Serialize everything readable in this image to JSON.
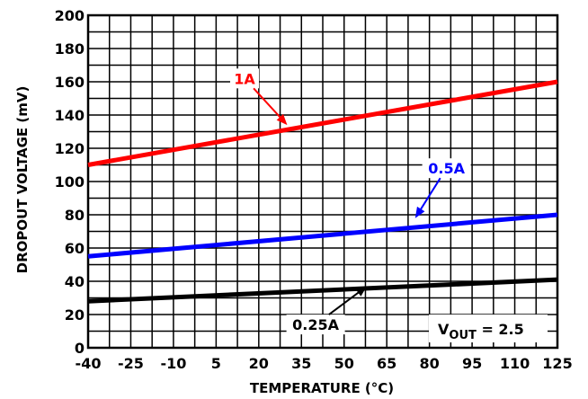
{
  "chart_data": {
    "type": "line",
    "xlabel": "TEMPERATURE (°C)",
    "ylabel": "DROPOUT VOLTAGE (mV)",
    "xlim": [
      -40,
      125
    ],
    "ylim": [
      0,
      200
    ],
    "x_ticks": [
      "-40",
      "-25",
      "-10",
      "5",
      "20",
      "35",
      "50",
      "65",
      "80",
      "95",
      "110",
      "125"
    ],
    "y_ticks": [
      "0",
      "20",
      "40",
      "60",
      "80",
      "100",
      "120",
      "140",
      "160",
      "180",
      "200"
    ],
    "grid": true,
    "series": [
      {
        "name": "1A",
        "color": "#ff0000",
        "x": [
          -40,
          125
        ],
        "y": [
          110,
          160
        ]
      },
      {
        "name": "0.5A",
        "color": "#0000ff",
        "x": [
          -40,
          125
        ],
        "y": [
          55,
          80
        ]
      },
      {
        "name": "0.25A",
        "color": "#000000",
        "x": [
          -40,
          125
        ],
        "y": [
          28,
          41
        ]
      }
    ],
    "annotations": [
      {
        "text": "1A",
        "color": "#ff0000",
        "x": 15,
        "y": 162,
        "arrow_to": [
          30,
          134
        ]
      },
      {
        "text": "0.5A",
        "color": "#0000ff",
        "x": 86,
        "y": 108,
        "arrow_to": [
          75,
          78
        ]
      },
      {
        "text": "0.25A",
        "color": "#000000",
        "x": 40,
        "y": 14,
        "arrow_to": [
          58,
          37
        ]
      }
    ],
    "vout_label": {
      "main": "V",
      "sub": "OUT",
      "rest": " = 2.5"
    }
  }
}
